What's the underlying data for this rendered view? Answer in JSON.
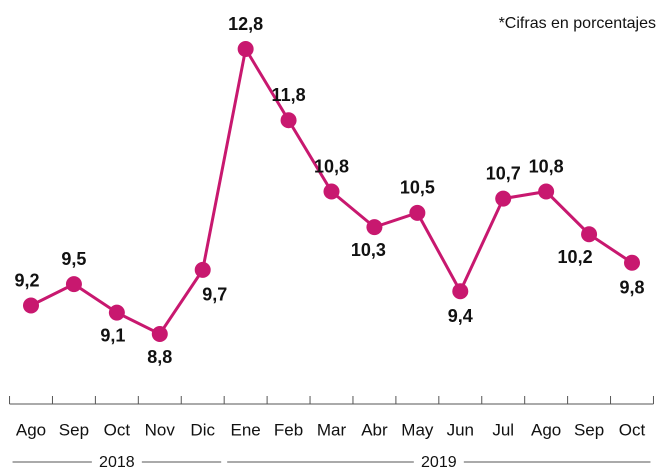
{
  "chart_data": {
    "type": "line",
    "annotation": "*Cifras en porcentajes",
    "categories": [
      "Ago",
      "Sep",
      "Oct",
      "Nov",
      "Dic",
      "Ene",
      "Feb",
      "Mar",
      "Abr",
      "May",
      "Jun",
      "Jul",
      "Ago",
      "Sep",
      "Oct"
    ],
    "series": [
      {
        "name": "Tasa",
        "color": "#c8186f",
        "values": [
          9.2,
          9.5,
          9.1,
          8.8,
          9.7,
          12.8,
          11.8,
          10.8,
          10.3,
          10.5,
          9.4,
          10.7,
          10.8,
          10.2,
          9.8
        ],
        "value_labels": [
          "9,2",
          "9,5",
          "9,1",
          "8,8",
          "9,7",
          "12,8",
          "11,8",
          "10,8",
          "10,3",
          "10,5",
          "9,4",
          "10,7",
          "10,8",
          "10,2",
          "9,8"
        ]
      }
    ],
    "years": [
      "2018",
      "2019"
    ]
  }
}
